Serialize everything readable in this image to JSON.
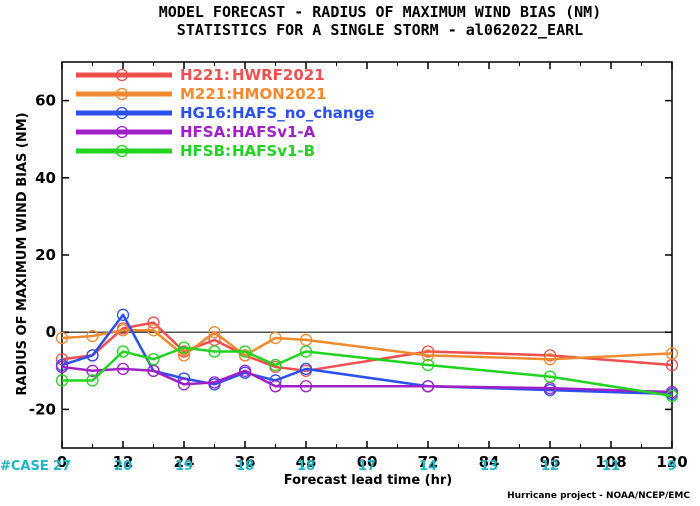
{
  "chart_data": {
    "type": "line",
    "title": "MODEL FORECAST - RADIUS OF MAXIMUM WIND BIAS (NM)",
    "subtitle": "STATISTICS FOR A SINGLE STORM - al062022_EARL",
    "xlabel": "Forecast lead time (hr)",
    "ylabel": "RADIUS OF MAXIMUM WIND BIAS (NM)",
    "xlim": [
      0,
      120
    ],
    "ylim": [
      -30,
      70
    ],
    "xticks": [
      "0",
      "12",
      "24",
      "36",
      "48",
      "60",
      "72",
      "84",
      "96",
      "108",
      "120"
    ],
    "yticks": [
      "-20",
      "0",
      "20",
      "40",
      "60"
    ],
    "zero_line": true,
    "legend_position": "top-left",
    "series": [
      {
        "name": "H221:",
        "label": "HWRF2021",
        "color": "#ef4f4f",
        "x": [
          0,
          6,
          12,
          18,
          24,
          30,
          36,
          42,
          48,
          72,
          96,
          120
        ],
        "y": [
          -7,
          -6,
          1,
          2.5,
          -5,
          -2,
          -6,
          -9,
          -10,
          -5,
          -6,
          -8.5
        ]
      },
      {
        "name": "M221:",
        "label": "HMON2021",
        "color": "#f08a30",
        "x": [
          0,
          6,
          12,
          18,
          24,
          30,
          36,
          42,
          48,
          72,
          96,
          120
        ],
        "y": [
          -1.5,
          -1,
          0.5,
          0.5,
          -6,
          0,
          -6,
          -1.5,
          -2,
          -6,
          -7,
          -5.5
        ]
      },
      {
        "name": "HG16:",
        "label": "HAFS_no_change",
        "color": "#2b50f0",
        "x": [
          0,
          6,
          12,
          18,
          24,
          30,
          36,
          42,
          48,
          72,
          96,
          120
        ],
        "y": [
          -8.5,
          -6,
          4.5,
          -10,
          -12,
          -13.5,
          -10.5,
          -12.5,
          -9.5,
          -14,
          -15,
          -16
        ]
      },
      {
        "name": "HFSA:",
        "label": "HAFSv1-A",
        "color": "#a020c8",
        "x": [
          0,
          6,
          12,
          18,
          24,
          30,
          36,
          42,
          48,
          72,
          96,
          120
        ],
        "y": [
          -9,
          -10,
          -9.5,
          -10,
          -13.5,
          -13,
          -10,
          -14,
          -14,
          -14,
          -14.5,
          -15.5
        ]
      },
      {
        "name": "HFSB:",
        "label": "HAFSv1-B",
        "color": "#22d322",
        "x": [
          0,
          6,
          12,
          18,
          24,
          30,
          36,
          42,
          48,
          72,
          96,
          120
        ],
        "y": [
          -12.5,
          -12.5,
          -5,
          -7,
          -4,
          -5,
          -5,
          -8.5,
          -5,
          -8.5,
          -11.5,
          -16.5
        ]
      }
    ],
    "case_label": "#CASE",
    "cases": [
      {
        "x": 0,
        "n": "27"
      },
      {
        "x": 12,
        "n": "20"
      },
      {
        "x": 24,
        "n": "19"
      },
      {
        "x": 36,
        "n": "18"
      },
      {
        "x": 48,
        "n": "18"
      },
      {
        "x": 60,
        "n": "17"
      },
      {
        "x": 72,
        "n": "14"
      },
      {
        "x": 84,
        "n": "13"
      },
      {
        "x": 96,
        "n": "12"
      },
      {
        "x": 108,
        "n": "11"
      },
      {
        "x": 120,
        "n": "9"
      }
    ],
    "credit": "Hurricane project - NOAA/NCEP/EMC"
  }
}
